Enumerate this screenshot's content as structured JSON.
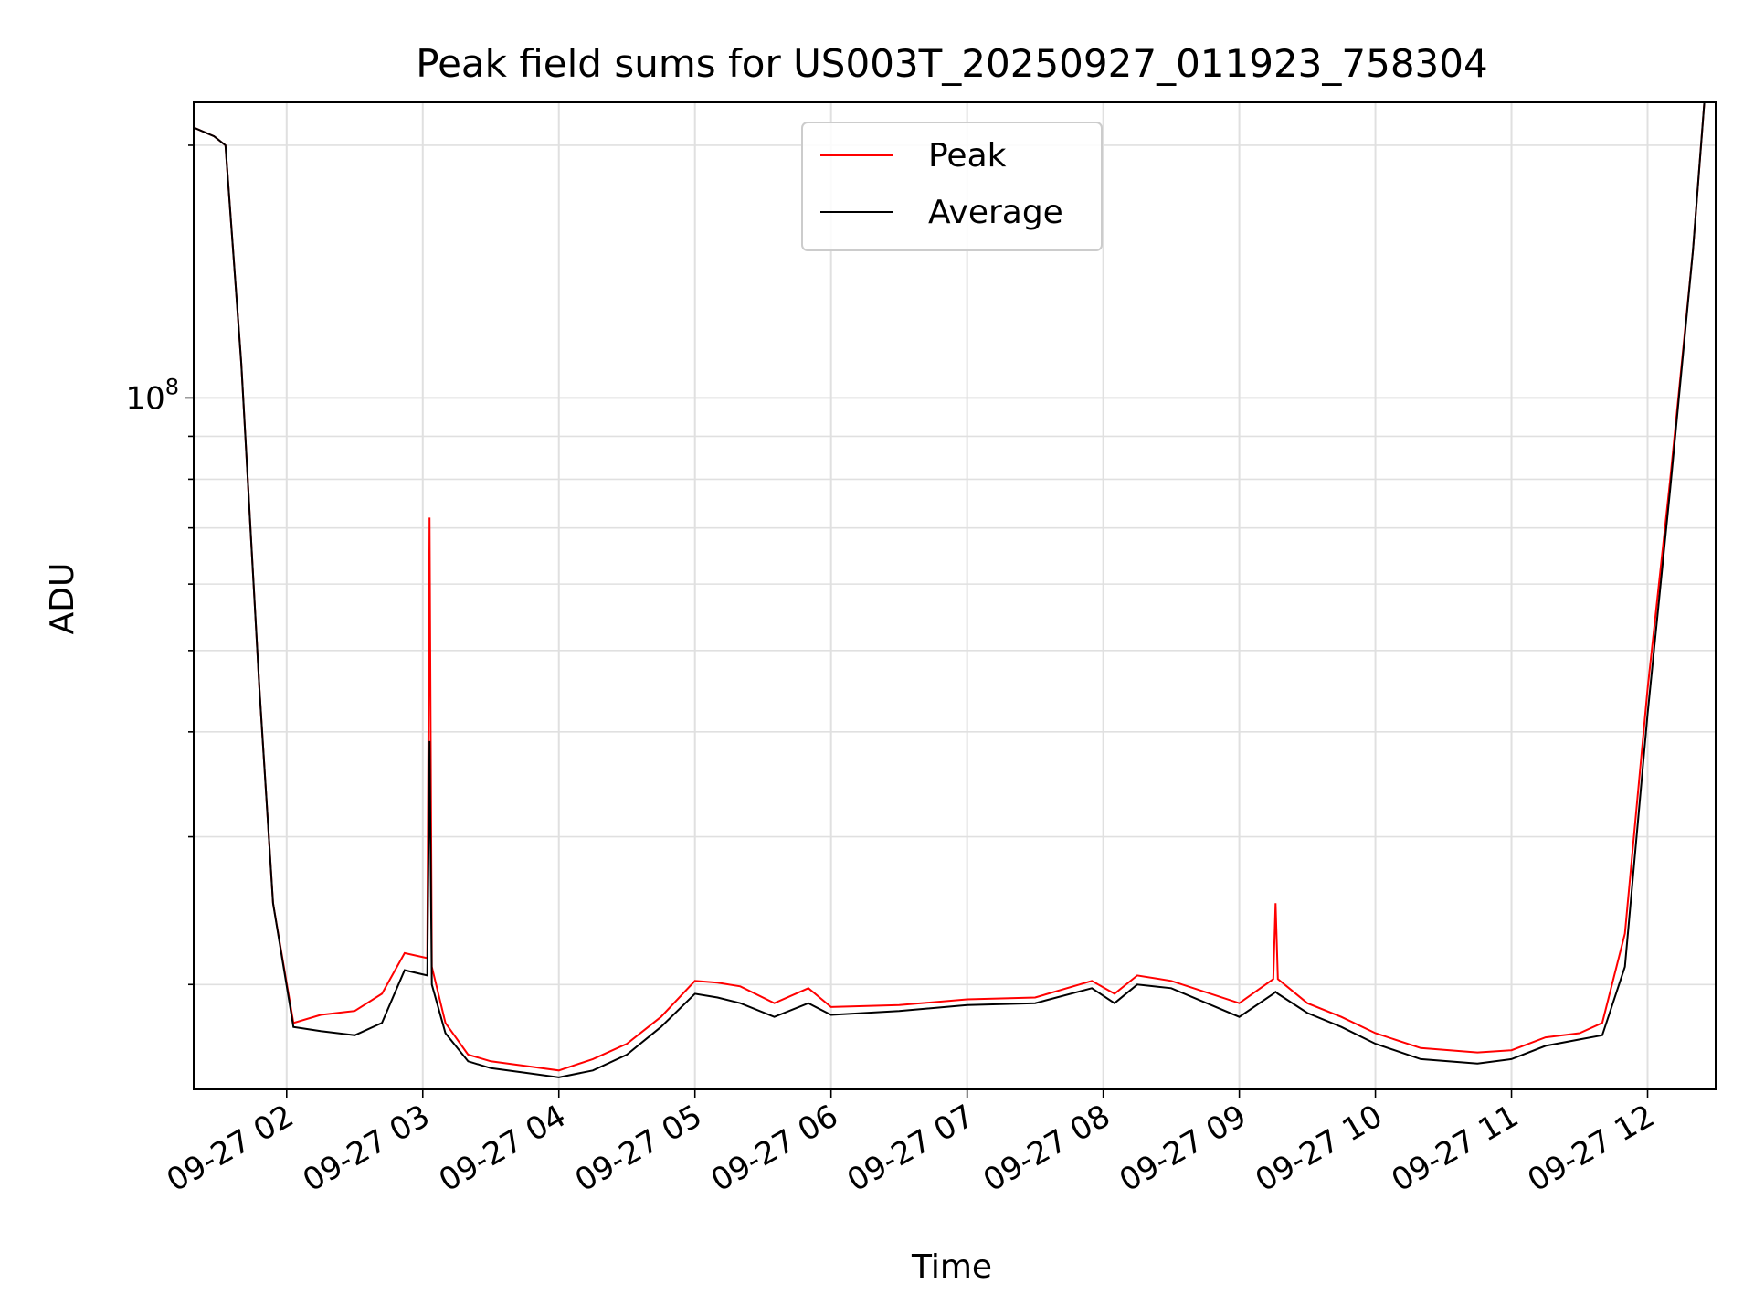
{
  "chart_data": {
    "type": "line",
    "title": "Peak field sums for US003T_20250927_011923_758304",
    "xlabel": "Time",
    "ylabel": "ADU",
    "yscale": "log",
    "ylim": [
      15000000,
      225000000
    ],
    "xlim": [
      "2025-09-27 01:19",
      "2025-09-27 12:30"
    ],
    "grid": true,
    "legend_position": "upper center",
    "x_ticks": [
      {
        "t": "2025-09-27 02:00",
        "label": "09-27 02"
      },
      {
        "t": "2025-09-27 03:00",
        "label": "09-27 03"
      },
      {
        "t": "2025-09-27 04:00",
        "label": "09-27 04"
      },
      {
        "t": "2025-09-27 05:00",
        "label": "09-27 05"
      },
      {
        "t": "2025-09-27 06:00",
        "label": "09-27 06"
      },
      {
        "t": "2025-09-27 07:00",
        "label": "09-27 07"
      },
      {
        "t": "2025-09-27 08:00",
        "label": "09-27 08"
      },
      {
        "t": "2025-09-27 09:00",
        "label": "09-27 09"
      },
      {
        "t": "2025-09-27 10:00",
        "label": "09-27 10"
      },
      {
        "t": "2025-09-27 11:00",
        "label": "09-27 11"
      },
      {
        "t": "2025-09-27 12:00",
        "label": "09-27 12"
      }
    ],
    "y_major_ticks": [
      {
        "value": 100000000,
        "label": "10",
        "exponent": "8"
      }
    ],
    "series": [
      {
        "name": "Peak",
        "color": "#ff0000",
        "x": [
          "2025-09-27 01:19",
          "2025-09-27 01:28",
          "2025-09-27 01:33",
          "2025-09-27 01:40",
          "2025-09-27 01:48",
          "2025-09-27 01:54",
          "2025-09-27 02:03",
          "2025-09-27 02:15",
          "2025-09-27 02:30",
          "2025-09-27 02:42",
          "2025-09-27 02:52",
          "2025-09-27 03:02",
          "2025-09-27 03:03",
          "2025-09-27 03:04",
          "2025-09-27 03:10",
          "2025-09-27 03:20",
          "2025-09-27 03:30",
          "2025-09-27 03:45",
          "2025-09-27 04:00",
          "2025-09-27 04:15",
          "2025-09-27 04:30",
          "2025-09-27 04:45",
          "2025-09-27 05:00",
          "2025-09-27 05:10",
          "2025-09-27 05:20",
          "2025-09-27 05:35",
          "2025-09-27 05:50",
          "2025-09-27 06:00",
          "2025-09-27 06:30",
          "2025-09-27 07:00",
          "2025-09-27 07:30",
          "2025-09-27 07:55",
          "2025-09-27 08:05",
          "2025-09-27 08:15",
          "2025-09-27 08:30",
          "2025-09-27 09:00",
          "2025-09-27 09:15",
          "2025-09-27 09:16",
          "2025-09-27 09:17",
          "2025-09-27 09:30",
          "2025-09-27 09:45",
          "2025-09-27 10:00",
          "2025-09-27 10:20",
          "2025-09-27 10:45",
          "2025-09-27 11:00",
          "2025-09-27 11:15",
          "2025-09-27 11:30",
          "2025-09-27 11:40",
          "2025-09-27 11:50",
          "2025-09-27 12:00",
          "2025-09-27 12:10",
          "2025-09-27 12:20",
          "2025-09-27 12:25"
        ],
        "values": [
          210000000,
          205000000,
          200000000,
          110000000,
          45000000,
          25000000,
          18000000,
          18400000,
          18600000,
          19500000,
          21800000,
          21500000,
          72000000,
          21000000,
          18000000,
          16500000,
          16200000,
          16000000,
          15800000,
          16300000,
          17000000,
          18300000,
          20200000,
          20100000,
          19900000,
          19000000,
          19800000,
          18800000,
          18900000,
          19200000,
          19300000,
          20200000,
          19500000,
          20500000,
          20200000,
          19000000,
          20300000,
          25000000,
          20300000,
          19000000,
          18300000,
          17500000,
          16800000,
          16600000,
          16700000,
          17300000,
          17500000,
          18000000,
          23000000,
          45000000,
          80000000,
          150000000,
          225000000
        ]
      },
      {
        "name": "Average",
        "color": "#000000",
        "x": [
          "2025-09-27 01:19",
          "2025-09-27 01:28",
          "2025-09-27 01:33",
          "2025-09-27 01:40",
          "2025-09-27 01:48",
          "2025-09-27 01:54",
          "2025-09-27 02:03",
          "2025-09-27 02:15",
          "2025-09-27 02:30",
          "2025-09-27 02:42",
          "2025-09-27 02:52",
          "2025-09-27 03:02",
          "2025-09-27 03:03",
          "2025-09-27 03:04",
          "2025-09-27 03:10",
          "2025-09-27 03:20",
          "2025-09-27 03:30",
          "2025-09-27 03:45",
          "2025-09-27 04:00",
          "2025-09-27 04:15",
          "2025-09-27 04:30",
          "2025-09-27 04:45",
          "2025-09-27 05:00",
          "2025-09-27 05:10",
          "2025-09-27 05:20",
          "2025-09-27 05:35",
          "2025-09-27 05:50",
          "2025-09-27 06:00",
          "2025-09-27 06:30",
          "2025-09-27 07:00",
          "2025-09-27 07:30",
          "2025-09-27 07:55",
          "2025-09-27 08:05",
          "2025-09-27 08:15",
          "2025-09-27 08:30",
          "2025-09-27 09:00",
          "2025-09-27 09:15",
          "2025-09-27 09:16",
          "2025-09-27 09:17",
          "2025-09-27 09:30",
          "2025-09-27 09:45",
          "2025-09-27 10:00",
          "2025-09-27 10:20",
          "2025-09-27 10:45",
          "2025-09-27 11:00",
          "2025-09-27 11:15",
          "2025-09-27 11:30",
          "2025-09-27 11:40",
          "2025-09-27 11:50",
          "2025-09-27 12:00",
          "2025-09-27 12:10",
          "2025-09-27 12:20",
          "2025-09-27 12:25"
        ],
        "values": [
          210000000,
          205000000,
          200000000,
          110000000,
          45000000,
          25000000,
          17800000,
          17600000,
          17400000,
          18000000,
          20800000,
          20500000,
          39000000,
          20000000,
          17500000,
          16200000,
          15900000,
          15700000,
          15500000,
          15800000,
          16500000,
          17800000,
          19500000,
          19300000,
          19000000,
          18300000,
          19000000,
          18400000,
          18600000,
          18900000,
          19000000,
          19800000,
          19000000,
          20000000,
          19800000,
          18300000,
          19500000,
          19600000,
          19500000,
          18500000,
          17800000,
          17000000,
          16300000,
          16100000,
          16300000,
          16900000,
          17200000,
          17400000,
          21000000,
          42000000,
          78000000,
          150000000,
          225000000
        ]
      }
    ]
  }
}
